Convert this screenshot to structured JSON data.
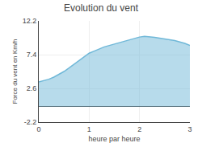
{
  "chart_data": {
    "type": "area",
    "title": "Evolution du vent",
    "xlabel": "heure par heure",
    "ylabel": "Force du vent en Km/h",
    "x": [
      0,
      0.1,
      0.2,
      0.3,
      0.4,
      0.5,
      0.6,
      0.7,
      0.8,
      0.9,
      1.0,
      1.1,
      1.2,
      1.3,
      1.4,
      1.5,
      1.6,
      1.7,
      1.8,
      1.9,
      2.0,
      2.1,
      2.2,
      2.3,
      2.4,
      2.5,
      2.6,
      2.7,
      2.8,
      2.9,
      3.0
    ],
    "values": [
      3.5,
      3.7,
      3.9,
      4.2,
      4.6,
      5.0,
      5.5,
      6.0,
      6.5,
      7.0,
      7.6,
      7.9,
      8.2,
      8.5,
      8.7,
      8.9,
      9.1,
      9.3,
      9.5,
      9.7,
      9.9,
      10.0,
      9.95,
      9.85,
      9.75,
      9.65,
      9.55,
      9.4,
      9.2,
      9.0,
      8.7
    ],
    "color": "#70b8d8",
    "xlim": [
      0,
      3
    ],
    "ylim": [
      -2.2,
      12.2
    ],
    "xticks": [
      0,
      1,
      2,
      3
    ],
    "yticks": [
      -2.2,
      2.6,
      7.4,
      12.2
    ],
    "grid": true
  }
}
